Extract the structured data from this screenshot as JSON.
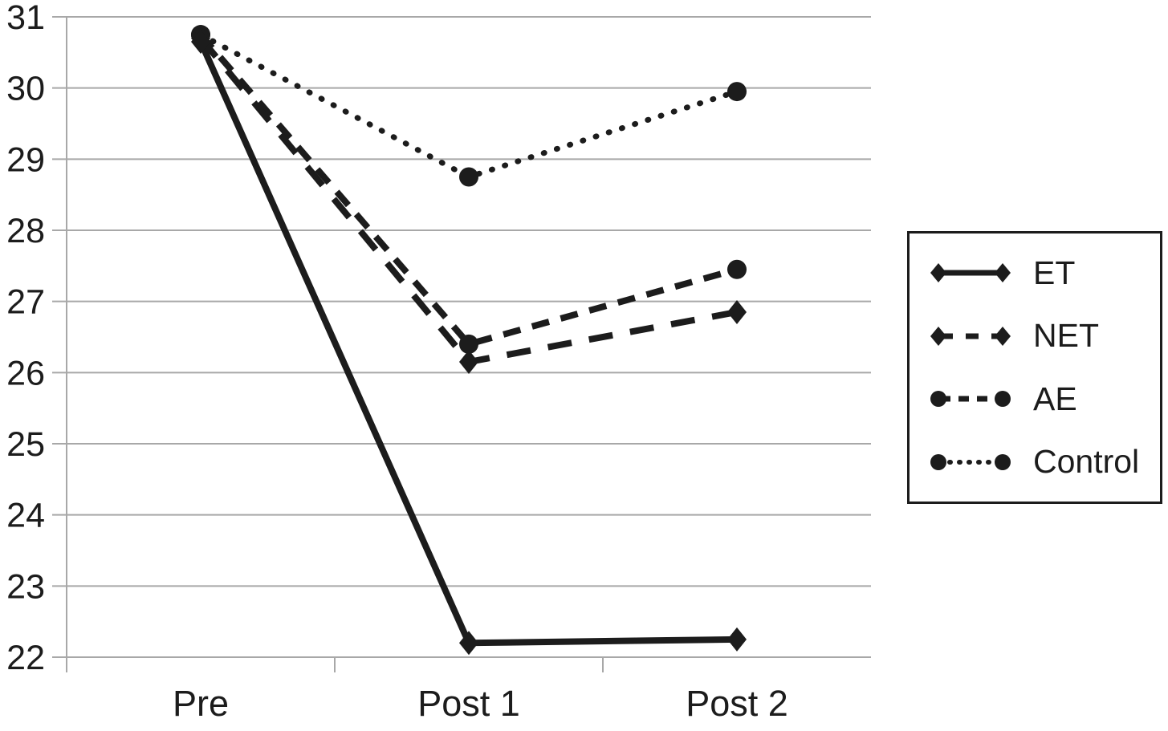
{
  "figure": {
    "background": "#ffffff",
    "text_color": "#1c1c1c",
    "line_color": "#1c1c1c",
    "gridline_color": "#a8a8a8"
  },
  "chart_data": {
    "type": "line",
    "title": "",
    "xlabel": "",
    "ylabel": "",
    "categories": [
      "Pre",
      "Post 1",
      "Post 2"
    ],
    "ylim": [
      22,
      31
    ],
    "yticks": [
      22,
      23,
      24,
      25,
      26,
      27,
      28,
      29,
      30,
      31
    ],
    "grid": "horizontal",
    "legend_position": "right",
    "series": [
      {
        "name": "ET",
        "values": [
          30.65,
          22.2,
          22.25
        ],
        "line_style": "solid",
        "marker": "diamond"
      },
      {
        "name": "NET",
        "values": [
          30.7,
          26.15,
          26.85
        ],
        "line_style": "long-dash",
        "marker": "diamond"
      },
      {
        "name": "AE",
        "values": [
          30.75,
          26.4,
          27.45
        ],
        "line_style": "dash",
        "marker": "circle"
      },
      {
        "name": "Control",
        "values": [
          30.75,
          28.75,
          29.95
        ],
        "line_style": "dot",
        "marker": "circle"
      }
    ]
  }
}
